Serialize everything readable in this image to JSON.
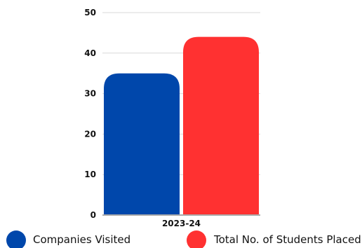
{
  "chart_data": {
    "type": "bar",
    "categories": [
      "2023-24"
    ],
    "series": [
      {
        "name": "Companies Visited",
        "values": [
          35
        ],
        "color": "#0047AB"
      },
      {
        "name": "Total No. of Students Placed",
        "values": [
          44
        ],
        "color": "#FF3131"
      }
    ],
    "ylim": [
      0,
      50
    ],
    "yticks": [
      0,
      10,
      20,
      30,
      40,
      50
    ],
    "grid": true,
    "legend": "bottom",
    "title": "",
    "xlabel": "",
    "ylabel": ""
  }
}
